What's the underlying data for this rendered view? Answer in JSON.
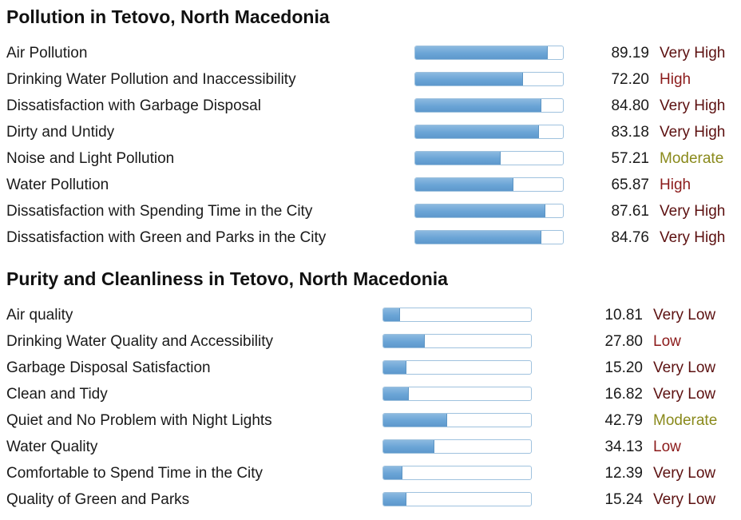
{
  "level_colors": {
    "Very High": "#5c1010",
    "High": "#8b1a1a",
    "Moderate": "#8a8a1c",
    "Low": "#8b1a1a",
    "Very Low": "#5c1010"
  },
  "pollution": {
    "title": "Pollution in Tetovo, North Macedonia",
    "rows": [
      {
        "label": "Air Pollution",
        "value": "89.19",
        "level": "Very High"
      },
      {
        "label": "Drinking Water Pollution and Inaccessibility",
        "value": "72.20",
        "level": "High"
      },
      {
        "label": "Dissatisfaction with Garbage Disposal",
        "value": "84.80",
        "level": "Very High"
      },
      {
        "label": "Dirty and Untidy",
        "value": "83.18",
        "level": "Very High"
      },
      {
        "label": "Noise and Light Pollution",
        "value": "57.21",
        "level": "Moderate"
      },
      {
        "label": "Water Pollution",
        "value": "65.87",
        "level": "High"
      },
      {
        "label": "Dissatisfaction with Spending Time in the City",
        "value": "87.61",
        "level": "Very High"
      },
      {
        "label": "Dissatisfaction with Green and Parks in the City",
        "value": "84.76",
        "level": "Very High"
      }
    ]
  },
  "purity": {
    "title": "Purity and Cleanliness in Tetovo, North Macedonia",
    "rows": [
      {
        "label": "Air quality",
        "value": "10.81",
        "level": "Very Low"
      },
      {
        "label": "Drinking Water Quality and Accessibility",
        "value": "27.80",
        "level": "Low"
      },
      {
        "label": "Garbage Disposal Satisfaction",
        "value": "15.20",
        "level": "Very Low"
      },
      {
        "label": "Clean and Tidy",
        "value": "16.82",
        "level": "Very Low"
      },
      {
        "label": "Quiet and No Problem with Night Lights",
        "value": "42.79",
        "level": "Moderate"
      },
      {
        "label": "Water Quality",
        "value": "34.13",
        "level": "Low"
      },
      {
        "label": "Comfortable to Spend Time in the City",
        "value": "12.39",
        "level": "Very Low"
      },
      {
        "label": "Quality of Green and Parks",
        "value": "15.24",
        "level": "Very Low"
      }
    ]
  }
}
